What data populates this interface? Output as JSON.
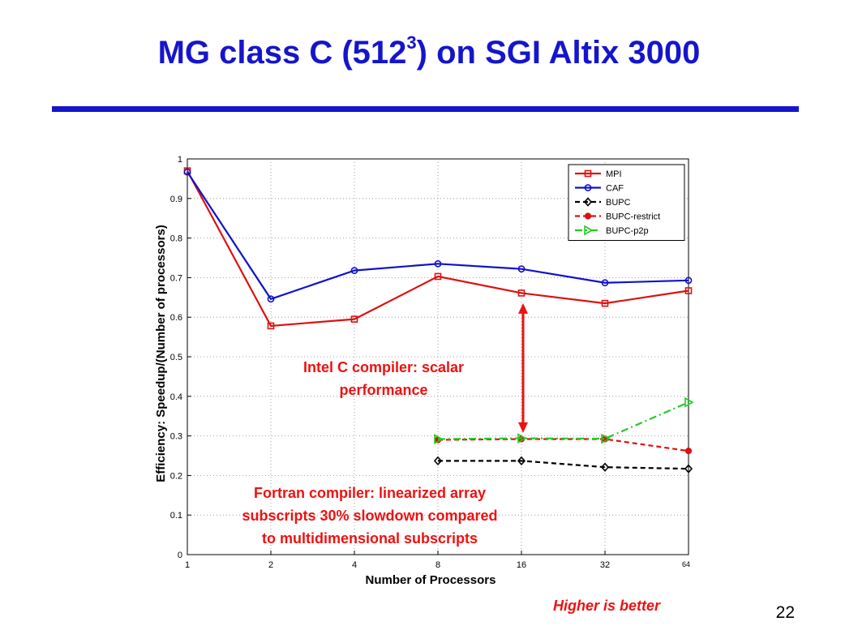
{
  "slide": {
    "title_main": "MG class C (512",
    "title_sup": "3",
    "title_rest": ") on SGI Altix 3000",
    "page_number": "22",
    "footnote": "Higher is better"
  },
  "colors": {
    "title": "#1515cc",
    "annotation": "#ee1111"
  },
  "annotations": [
    {
      "lines": [
        "Intel C compiler: scalar",
        "performance"
      ]
    },
    {
      "lines": [
        "Fortran compiler: linearized array",
        "subscripts 30% slowdown compared",
        "to multidimensional subscripts"
      ]
    }
  ],
  "chart_data": {
    "type": "line",
    "title": "",
    "xlabel": "Number of Processors",
    "ylabel": "Efficiency: Speedup/(Number of processors)",
    "xscale": "log2",
    "x_ticks": [
      "1",
      "2",
      "4",
      "8",
      "16",
      "32",
      "64"
    ],
    "y_ticks": [
      "0",
      "0.1",
      "0.2",
      "0.3",
      "0.4",
      "0.5",
      "0.6",
      "0.7",
      "0.8",
      "0.9",
      "1"
    ],
    "ylim": [
      0,
      1
    ],
    "grid": true,
    "legend_position": "top-right",
    "series": [
      {
        "name": "MPI",
        "color": "#dd1111",
        "dash": "solid",
        "marker": "square",
        "x": [
          1,
          2,
          4,
          8,
          16,
          32,
          64
        ],
        "y": [
          0.97,
          0.578,
          0.595,
          0.703,
          0.661,
          0.635,
          0.667
        ]
      },
      {
        "name": "CAF",
        "color": "#1111cc",
        "dash": "solid",
        "marker": "circle",
        "x": [
          1,
          2,
          4,
          8,
          16,
          32,
          64
        ],
        "y": [
          0.967,
          0.646,
          0.718,
          0.735,
          0.722,
          0.687,
          0.693
        ]
      },
      {
        "name": "BUPC",
        "color": "#000000",
        "dash": "dashed",
        "marker": "diamond",
        "x": [
          8,
          16,
          32,
          64
        ],
        "y": [
          0.237,
          0.237,
          0.221,
          0.217
        ]
      },
      {
        "name": "BUPC-restrict",
        "color": "#dd1111",
        "dash": "dashed",
        "marker": "dot",
        "x": [
          8,
          16,
          32,
          64
        ],
        "y": [
          0.29,
          0.292,
          0.292,
          0.262
        ]
      },
      {
        "name": "BUPC-p2p",
        "color": "#22cc22",
        "dash": "dashdot",
        "marker": "triangle-right",
        "x": [
          8,
          16,
          32,
          64
        ],
        "y": [
          0.292,
          0.294,
          0.293,
          0.385
        ]
      }
    ],
    "arrow": {
      "x": 16,
      "y_from": 0.66,
      "y_to": 0.32,
      "color": "#ee1111"
    }
  }
}
